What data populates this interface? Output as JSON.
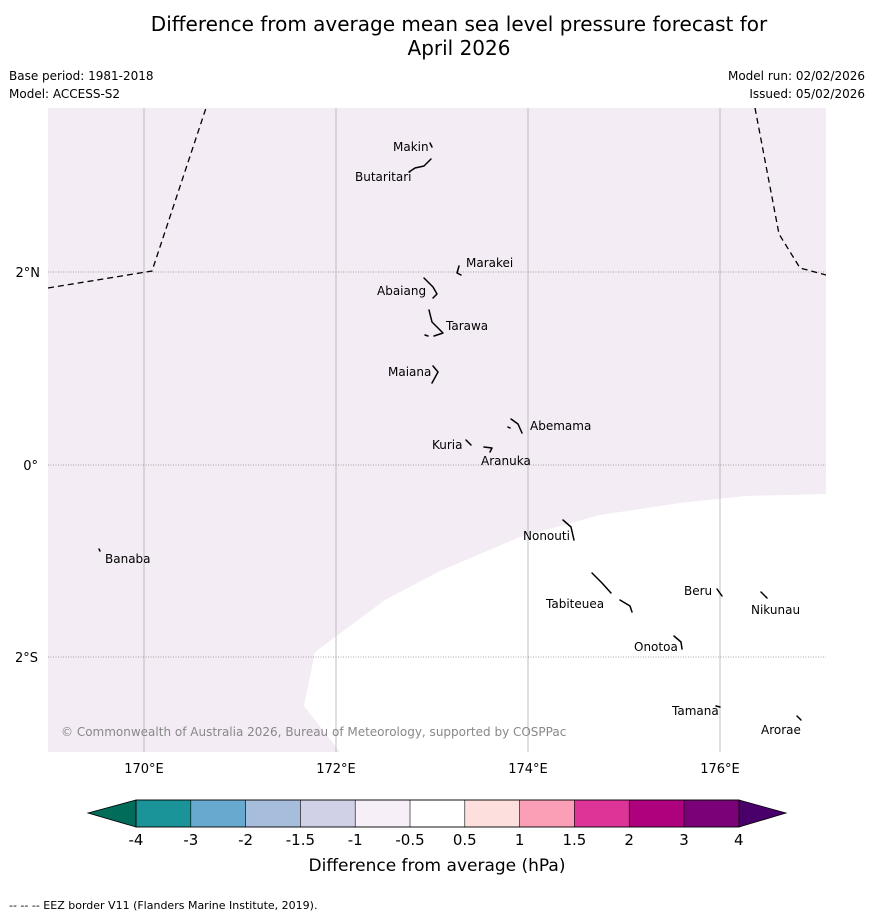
{
  "title_line1": "Difference from average mean sea level pressure forecast for",
  "title_line2": "April 2026",
  "meta": {
    "base_period": "Base period: 1981-2018",
    "model": "Model: ACCESS-S2",
    "model_run": "Model run: 02/02/2026",
    "issued": "Issued: 05/02/2026"
  },
  "map": {
    "lon_labels": [
      "170°E",
      "172°E",
      "174°E",
      "176°E"
    ],
    "lat_labels": [
      "2°N",
      "0°",
      "2°S"
    ],
    "attribution": "© Commonwealth of Australia 2026, Bureau of Meteorology, supported by COSPPac",
    "islands": [
      "Makin",
      "Butaritari",
      "Marakei",
      "Abaiang",
      "Tarawa",
      "Maiana",
      "Abemama",
      "Kuria",
      "Aranuka",
      "Nonouti",
      "Banaba",
      "Tabiteuea",
      "Beru",
      "Nikunau",
      "Onotoa",
      "Tamana",
      "Arorae"
    ],
    "field_category": "-1 to -0.5",
    "colors": {
      "field": "#f4ecf4",
      "land": "#000000"
    }
  },
  "colorbar": {
    "tick_labels": [
      "-4",
      "-3",
      "-2",
      "-1.5",
      "-1",
      "-0.5",
      "0.5",
      "1",
      "1.5",
      "2",
      "3",
      "4"
    ],
    "colors": [
      "#1a9499",
      "#67a9cf",
      "#a6bddb",
      "#d0d1e6",
      "#f6eff7",
      "#ffffff",
      "#fde0dd",
      "#fa9fb5",
      "#dd3497",
      "#ae017e",
      "#7a0177"
    ],
    "low_extend_color": "#016c59",
    "high_extend_color": "#49006a",
    "label": "Difference from average (hPa)"
  },
  "footer": "--  --  -- EEZ border V11 (Flanders Marine Institute, 2019)."
}
